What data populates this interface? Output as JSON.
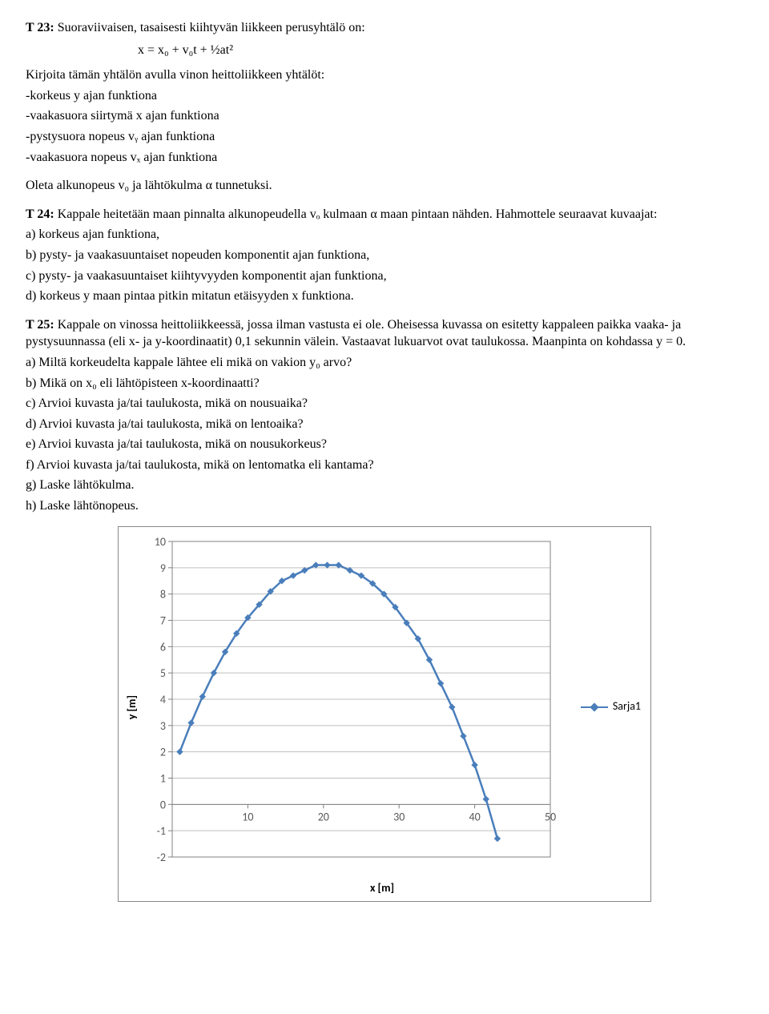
{
  "t23": {
    "label": "T 23:",
    "title": "Suoraviivaisen, tasaisesti kiihtyvän liikkeen perusyhtälö on:",
    "equation": "x =  x₀ + v₀t + ½at²",
    "intro": "Kirjoita tämän yhtälön avulla vinon heittoliikkeen yhtälöt:",
    "lines": [
      "-korkeus y ajan funktiona",
      "-vaakasuora siirtymä x ajan funktiona",
      "-pystysuora nopeus vᵧ ajan funktiona",
      "-vaakasuora nopeus vₓ ajan funktiona"
    ],
    "assume": "Oleta alkunopeus v₀ ja lähtökulma α tunnetuksi."
  },
  "t24": {
    "label": "T 24:",
    "lead": "Kappale heitetään maan pinnalta alkunopeudella vₒ kulmaan α maan pintaan nähden. Hahmottele seuraavat kuvaajat:",
    "items": [
      "a) korkeus ajan funktiona,",
      "b) pysty- ja vaakasuuntaiset nopeuden komponentit ajan funktiona,",
      "c) pysty- ja vaakasuuntaiset kiihtyvyyden komponentit ajan funktiona,",
      "d) korkeus y maan pintaa pitkin mitatun etäisyyden x funktiona."
    ]
  },
  "t25": {
    "label": "T 25:",
    "lead": "Kappale on vinossa heittoliikkeessä, jossa ilman vastusta ei ole. Oheisessa kuvassa on esitetty kappaleen paikka vaaka- ja pystysuunnassa (eli x- ja y-koordinaatit) 0,1 sekunnin välein. Vastaavat lukuarvot ovat taulukossa. Maanpinta on kohdassa y = 0.",
    "items": [
      "a) Miltä korkeudelta kappale lähtee eli mikä on vakion y₀ arvo?",
      "b) Mikä on x₀ eli lähtöpisteen x-koordinaatti?",
      "c) Arvioi kuvasta ja/tai taulukosta, mikä on nousuaika?",
      "d) Arvioi kuvasta ja/tai taulukosta, mikä on lentoaika?",
      "e) Arvioi kuvasta ja/tai taulukosta, mikä on nousukorkeus?",
      "f) Arvioi kuvasta ja/tai taulukosta, mikä on lentomatka eli kantama?",
      "g) Laske lähtökulma.",
      "h) Laske lähtönopeus."
    ]
  },
  "chart": {
    "type": "scatter-line",
    "xlabel": "x [m]",
    "ylabel": "y [m]",
    "legend_label": "Sarja1",
    "xlim": [
      0,
      50
    ],
    "ylim": [
      -2,
      10
    ],
    "xticks": [
      10,
      20,
      30,
      40,
      50
    ],
    "yticks": [
      -2,
      -1,
      0,
      1,
      2,
      3,
      4,
      5,
      6,
      7,
      8,
      9,
      10
    ],
    "line_color": "#4a7ebb",
    "marker_color": "#4a7ebb",
    "grid_color": "#bfbfbf",
    "axis_color": "#808080",
    "background": "#ffffff",
    "marker": "diamond",
    "marker_size": 7,
    "line_width": 2.5,
    "tick_fontsize": 14,
    "label_fontsize": 14,
    "points": [
      [
        1.0,
        2.0
      ],
      [
        2.5,
        3.1
      ],
      [
        4.0,
        4.1
      ],
      [
        5.5,
        5.0
      ],
      [
        7.0,
        5.8
      ],
      [
        8.5,
        6.5
      ],
      [
        10.0,
        7.1
      ],
      [
        11.5,
        7.6
      ],
      [
        13.0,
        8.1
      ],
      [
        14.5,
        8.5
      ],
      [
        16.0,
        8.7
      ],
      [
        17.5,
        8.9
      ],
      [
        19.0,
        9.1
      ],
      [
        20.5,
        9.1
      ],
      [
        22.0,
        9.1
      ],
      [
        23.5,
        8.9
      ],
      [
        25.0,
        8.7
      ],
      [
        26.5,
        8.4
      ],
      [
        28.0,
        8.0
      ],
      [
        29.5,
        7.5
      ],
      [
        31.0,
        6.9
      ],
      [
        32.5,
        6.3
      ],
      [
        34.0,
        5.5
      ],
      [
        35.5,
        4.6
      ],
      [
        37.0,
        3.7
      ],
      [
        38.5,
        2.6
      ],
      [
        40.0,
        1.5
      ],
      [
        41.5,
        0.2
      ],
      [
        43.0,
        -1.3
      ]
    ]
  }
}
